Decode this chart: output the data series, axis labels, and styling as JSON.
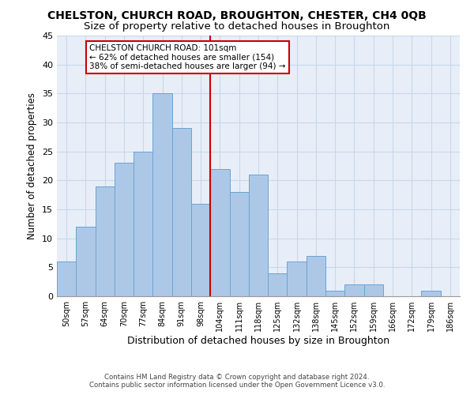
{
  "title": "CHELSTON, CHURCH ROAD, BROUGHTON, CHESTER, CH4 0QB",
  "subtitle": "Size of property relative to detached houses in Broughton",
  "xlabel": "Distribution of detached houses by size in Broughton",
  "ylabel": "Number of detached properties",
  "categories": [
    "50sqm",
    "57sqm",
    "64sqm",
    "70sqm",
    "77sqm",
    "84sqm",
    "91sqm",
    "98sqm",
    "104sqm",
    "111sqm",
    "118sqm",
    "125sqm",
    "132sqm",
    "138sqm",
    "145sqm",
    "152sqm",
    "159sqm",
    "166sqm",
    "172sqm",
    "179sqm",
    "186sqm"
  ],
  "values": [
    6,
    12,
    19,
    23,
    25,
    35,
    29,
    16,
    22,
    18,
    21,
    4,
    6,
    7,
    1,
    2,
    2,
    0,
    0,
    1,
    0
  ],
  "bar_color": "#adc8e6",
  "bar_edge_color": "#6aa3d4",
  "grid_color": "#c8d8ea",
  "background_color": "#e8eef8",
  "vline_x": 7.5,
  "vline_color": "#cc0000",
  "annotation_text": "CHELSTON CHURCH ROAD: 101sqm\n← 62% of detached houses are smaller (154)\n38% of semi-detached houses are larger (94) →",
  "annotation_box_color": "#ffffff",
  "annotation_box_edge": "#cc0000",
  "ylim": [
    0,
    45
  ],
  "yticks": [
    0,
    5,
    10,
    15,
    20,
    25,
    30,
    35,
    40,
    45
  ],
  "footnote": "Contains HM Land Registry data © Crown copyright and database right 2024.\nContains public sector information licensed under the Open Government Licence v3.0.",
  "title_fontsize": 10,
  "subtitle_fontsize": 9.5,
  "ylabel_fontsize": 8.5,
  "xlabel_fontsize": 9
}
